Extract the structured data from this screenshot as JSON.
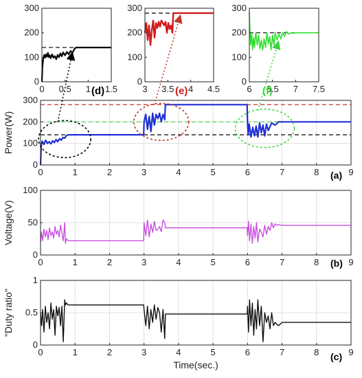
{
  "figure_labels": {
    "d": "(d)",
    "e": "(e)",
    "f": "(f)",
    "a": "(a)",
    "b": "(b)",
    "c": "(c)"
  },
  "chart_data": [
    {
      "id": "inset_d",
      "type": "line",
      "xlim": [
        0,
        1.5
      ],
      "ylim": [
        0,
        300
      ],
      "xticks": [
        0,
        0.5,
        1,
        1.5
      ],
      "xtick_labels": [
        "0",
        "0.5",
        "1",
        "1.5"
      ],
      "yticks": [
        0,
        100,
        200,
        300
      ],
      "ytick_labels": [
        "0",
        "100",
        "200",
        "300"
      ],
      "grid": false,
      "colors": {
        "series": "#000000",
        "reference": "#000000"
      },
      "reference_lines": [
        {
          "y": 140,
          "style": "dashed",
          "color": "#000000"
        }
      ],
      "series": [
        {
          "x": [
            0,
            0.01,
            0.03,
            0.05,
            0.07,
            0.09,
            0.11,
            0.13,
            0.15,
            0.17,
            0.19,
            0.22,
            0.25,
            0.28,
            0.31,
            0.34,
            0.37,
            0.4,
            0.43,
            0.46,
            0.5,
            0.54,
            0.58,
            0.62,
            0.66,
            0.7,
            0.72,
            0.75,
            0.8,
            0.9,
            1.0,
            1.2,
            1.5
          ],
          "y": [
            0,
            60,
            95,
            110,
            98,
            112,
            102,
            118,
            100,
            108,
            96,
            112,
            98,
            105,
            92,
            110,
            100,
            116,
            104,
            120,
            108,
            122,
            112,
            126,
            118,
            132,
            138,
            140,
            140,
            140,
            140,
            140,
            140
          ]
        }
      ]
    },
    {
      "id": "inset_e",
      "type": "line",
      "xlim": [
        3,
        4.5
      ],
      "ylim": [
        0,
        300
      ],
      "xticks": [
        3,
        3.5,
        4,
        4.5
      ],
      "xtick_labels": [
        "3",
        "3.5",
        "4",
        "4.5"
      ],
      "yticks": [
        0,
        100,
        200,
        300
      ],
      "ytick_labels": [
        "0",
        "100",
        "200",
        "300"
      ],
      "grid": false,
      "colors": {
        "series": "#d11a1a",
        "reference": "#000000"
      },
      "reference_lines": [
        {
          "y": 280,
          "style": "dashed",
          "color": "#000000"
        }
      ],
      "series": [
        {
          "x": [
            3,
            3.03,
            3.06,
            3.09,
            3.12,
            3.15,
            3.18,
            3.21,
            3.24,
            3.27,
            3.3,
            3.33,
            3.36,
            3.39,
            3.42,
            3.45,
            3.48,
            3.51,
            3.54,
            3.57,
            3.6,
            3.62,
            3.65,
            3.7,
            4.0,
            4.5
          ],
          "y": [
            200,
            240,
            170,
            230,
            150,
            210,
            250,
            180,
            240,
            220,
            245,
            225,
            250,
            240,
            230,
            245,
            200,
            240,
            215,
            230,
            200,
            280,
            280,
            280,
            280,
            280
          ]
        }
      ]
    },
    {
      "id": "inset_f",
      "type": "line",
      "xlim": [
        6,
        7.5
      ],
      "ylim": [
        0,
        300
      ],
      "xticks": [
        6,
        6.5,
        7,
        7.5
      ],
      "xtick_labels": [
        "6",
        "6.5",
        "7",
        "7.5"
      ],
      "yticks": [
        0,
        100,
        200,
        300
      ],
      "ytick_labels": [
        "0",
        "100",
        "200",
        "300"
      ],
      "grid": false,
      "colors": {
        "series": "#2ee02e",
        "reference": "#000000"
      },
      "reference_lines": [
        {
          "y": 200,
          "style": "dashed",
          "color": "#000000"
        }
      ],
      "series": [
        {
          "x": [
            6,
            6.01,
            6.03,
            6.05,
            6.07,
            6.09,
            6.11,
            6.14,
            6.17,
            6.2,
            6.23,
            6.26,
            6.29,
            6.32,
            6.35,
            6.38,
            6.41,
            6.44,
            6.47,
            6.5,
            6.53,
            6.56,
            6.6,
            6.64,
            6.68,
            6.72,
            6.76,
            6.8,
            6.85,
            6.9,
            6.95,
            7.0,
            7.2,
            7.5
          ],
          "y": [
            285,
            220,
            150,
            200,
            130,
            180,
            140,
            200,
            150,
            190,
            135,
            170,
            130,
            175,
            140,
            200,
            155,
            185,
            130,
            190,
            150,
            200,
            170,
            195,
            175,
            200,
            185,
            205,
            195,
            200,
            198,
            200,
            200,
            200
          ]
        }
      ]
    },
    {
      "id": "power",
      "type": "line",
      "ylabel": "Power(W)",
      "xlim": [
        0,
        9
      ],
      "ylim": [
        0,
        300
      ],
      "xticks": [
        0,
        1,
        2,
        3,
        4,
        5,
        6,
        7,
        8,
        9
      ],
      "xtick_labels": [
        "0",
        "1",
        "2",
        "3",
        "4",
        "5",
        "6",
        "7",
        "8",
        "9"
      ],
      "yticks": [
        0,
        100,
        200,
        300
      ],
      "ytick_labels": [
        "0",
        "100",
        "200",
        "300"
      ],
      "grid": true,
      "colors": {
        "series": "#1f2fd6",
        "ref_high": "#c0392b",
        "ref_mid": "#3fd43f",
        "ref_low": "#000000",
        "ellipse_d": "#000000",
        "ellipse_e": "#c0392b",
        "ellipse_f": "#3fd43f"
      },
      "reference_lines": [
        {
          "y": 280,
          "style": "dashed",
          "color": "#c0392b"
        },
        {
          "y": 200,
          "style": "dashed",
          "color": "#3fd43f"
        },
        {
          "y": 140,
          "style": "dashed",
          "color": "#000000"
        }
      ],
      "series": [
        {
          "x": [
            0,
            0.02,
            0.05,
            0.1,
            0.15,
            0.2,
            0.25,
            0.3,
            0.35,
            0.4,
            0.45,
            0.5,
            0.55,
            0.6,
            0.65,
            0.7,
            0.75,
            0.8,
            1.0,
            2.0,
            2.99,
            3.0,
            3.05,
            3.1,
            3.15,
            3.2,
            3.25,
            3.3,
            3.35,
            3.4,
            3.45,
            3.5,
            3.55,
            3.6,
            3.62,
            3.65,
            4.0,
            5.0,
            5.99,
            6.0,
            6.02,
            6.05,
            6.1,
            6.15,
            6.2,
            6.25,
            6.3,
            6.35,
            6.4,
            6.45,
            6.5,
            6.55,
            6.6,
            6.7,
            6.8,
            6.9,
            7.0,
            8.0,
            9.0
          ],
          "y": [
            0,
            90,
            110,
            95,
            115,
            100,
            108,
            98,
            112,
            104,
            118,
            108,
            122,
            115,
            128,
            124,
            136,
            140,
            140,
            140,
            140,
            200,
            235,
            165,
            225,
            155,
            240,
            185,
            235,
            215,
            240,
            200,
            235,
            210,
            280,
            280,
            280,
            280,
            280,
            200,
            140,
            190,
            130,
            175,
            135,
            180,
            130,
            195,
            150,
            185,
            135,
            190,
            160,
            195,
            185,
            200,
            200,
            200,
            200
          ]
        }
      ]
    },
    {
      "id": "voltage",
      "type": "line",
      "ylabel": "Voltage(V)",
      "xlim": [
        0,
        9
      ],
      "ylim": [
        0,
        100
      ],
      "xticks": [
        0,
        1,
        2,
        3,
        4,
        5,
        6,
        7,
        8,
        9
      ],
      "xtick_labels": [
        "0",
        "1",
        "2",
        "3",
        "4",
        "5",
        "6",
        "7",
        "8",
        "9"
      ],
      "yticks": [
        0,
        50,
        100
      ],
      "ytick_labels": [
        "0",
        "50",
        "100"
      ],
      "grid": true,
      "colors": {
        "series": "#c84fe0"
      },
      "series": [
        {
          "x": [
            0,
            0.03,
            0.06,
            0.1,
            0.14,
            0.18,
            0.22,
            0.26,
            0.3,
            0.34,
            0.38,
            0.42,
            0.46,
            0.5,
            0.54,
            0.58,
            0.62,
            0.66,
            0.7,
            0.72,
            0.75,
            0.8,
            1.0,
            2.0,
            2.99,
            3.0,
            3.05,
            3.1,
            3.15,
            3.2,
            3.25,
            3.3,
            3.35,
            3.4,
            3.45,
            3.5,
            3.55,
            3.6,
            3.62,
            3.65,
            4.0,
            5.0,
            5.99,
            6.0,
            6.03,
            6.06,
            6.1,
            6.14,
            6.18,
            6.22,
            6.26,
            6.3,
            6.35,
            6.4,
            6.45,
            6.5,
            6.55,
            6.6,
            6.65,
            6.7,
            6.75,
            6.8,
            6.85,
            6.9,
            7.0,
            8.0,
            9.0
          ],
          "y": [
            20,
            35,
            22,
            40,
            28,
            38,
            24,
            42,
            30,
            36,
            26,
            44,
            32,
            38,
            28,
            46,
            34,
            22,
            50,
            18,
            25,
            22,
            22,
            22,
            22,
            50,
            30,
            54,
            28,
            48,
            35,
            52,
            38,
            40,
            44,
            36,
            54,
            50,
            42,
            42,
            42,
            42,
            42,
            30,
            52,
            22,
            48,
            18,
            44,
            26,
            50,
            20,
            40,
            35,
            28,
            46,
            32,
            44,
            38,
            50,
            42,
            48,
            46,
            47,
            46,
            46,
            46
          ]
        }
      ]
    },
    {
      "id": "duty",
      "type": "line",
      "ylabel": "\"Duty ratio\"",
      "xlabel": "Time(sec.)",
      "xlim": [
        0,
        9
      ],
      "ylim": [
        0,
        1
      ],
      "xticks": [
        0,
        1,
        2,
        3,
        4,
        5,
        6,
        7,
        8,
        9
      ],
      "xtick_labels": [
        "0",
        "1",
        "2",
        "3",
        "4",
        "5",
        "6",
        "7",
        "8",
        "9"
      ],
      "yticks": [
        0,
        0.5,
        1
      ],
      "ytick_labels": [
        "0",
        "0.5",
        "1"
      ],
      "grid": true,
      "colors": {
        "series": "#111111"
      },
      "series": [
        {
          "x": [
            0,
            0.03,
            0.06,
            0.1,
            0.14,
            0.18,
            0.22,
            0.26,
            0.3,
            0.34,
            0.38,
            0.42,
            0.46,
            0.5,
            0.54,
            0.58,
            0.62,
            0.66,
            0.7,
            0.72,
            0.75,
            0.8,
            1.0,
            2.0,
            2.99,
            3.0,
            3.05,
            3.1,
            3.15,
            3.2,
            3.25,
            3.3,
            3.35,
            3.4,
            3.45,
            3.5,
            3.55,
            3.6,
            3.62,
            3.65,
            4.0,
            5.0,
            5.99,
            6.0,
            6.03,
            6.06,
            6.1,
            6.14,
            6.18,
            6.22,
            6.26,
            6.3,
            6.35,
            6.4,
            6.45,
            6.5,
            6.55,
            6.6,
            6.65,
            6.7,
            6.75,
            6.8,
            6.85,
            6.9,
            7.0,
            8.0,
            9.0
          ],
          "y": [
            0.5,
            0.3,
            0.55,
            0.2,
            0.6,
            0.35,
            0.5,
            0.25,
            0.65,
            0.4,
            0.55,
            0.15,
            0.6,
            0.45,
            0.58,
            0.3,
            0.6,
            0.05,
            0.7,
            0.62,
            0.65,
            0.62,
            0.62,
            0.62,
            0.62,
            0.55,
            0.3,
            0.6,
            0.25,
            0.55,
            0.35,
            0.62,
            0.4,
            0.58,
            0.5,
            0.2,
            0.55,
            0.1,
            0.48,
            0.48,
            0.48,
            0.48,
            0.48,
            0.6,
            0.2,
            0.7,
            0.3,
            0.65,
            0.15,
            0.55,
            0.25,
            0.7,
            0.3,
            0.6,
            0.05,
            0.5,
            0.35,
            0.45,
            0.25,
            0.5,
            0.3,
            0.35,
            0.32,
            0.3,
            0.35,
            0.35,
            0.35
          ]
        }
      ]
    }
  ]
}
